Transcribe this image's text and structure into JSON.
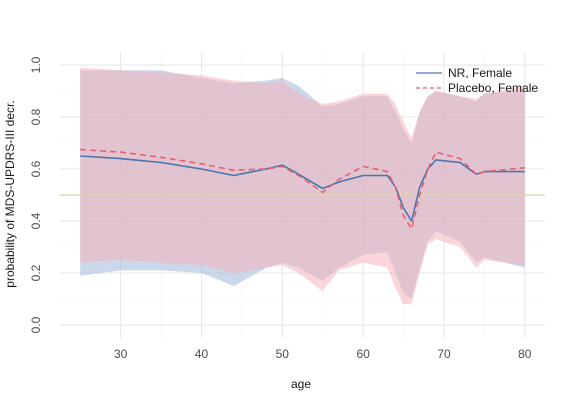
{
  "chart_data": {
    "type": "line",
    "xlabel": "age",
    "ylabel": "probability of MDS-UPDRS-III decr.",
    "xlim": [
      22.5,
      82.5
    ],
    "ylim": [
      -0.05,
      1.05
    ],
    "xticks": [
      30,
      40,
      50,
      60,
      70,
      80
    ],
    "yticks": [
      0.0,
      0.2,
      0.4,
      0.6,
      0.8,
      1.0
    ],
    "xtick_labels": [
      "30",
      "40",
      "50",
      "60",
      "70",
      "80"
    ],
    "ytick_labels": [
      "0.0",
      "0.2",
      "0.4",
      "0.6",
      "0.8",
      "1.0"
    ],
    "grid": true,
    "legend_position": "top-right",
    "reference_line": {
      "y": 0.5,
      "color": "#d8d6a0"
    },
    "x": [
      25,
      30,
      35,
      40,
      44,
      48,
      50,
      52,
      55,
      57,
      60,
      63,
      64,
      65,
      66,
      67,
      68,
      69,
      72,
      74,
      75,
      80
    ],
    "series": [
      {
        "name": "NR, Female",
        "color": "#4a74b0",
        "band_color": "#a8bcdc",
        "line_style": "solid",
        "values": [
          0.65,
          0.64,
          0.625,
          0.6,
          0.575,
          0.6,
          0.615,
          0.58,
          0.525,
          0.55,
          0.575,
          0.575,
          0.53,
          0.45,
          0.4,
          0.53,
          0.6,
          0.635,
          0.625,
          0.58,
          0.59,
          0.59
        ],
        "lower": [
          0.19,
          0.21,
          0.21,
          0.2,
          0.15,
          0.22,
          0.24,
          0.22,
          0.17,
          0.22,
          0.27,
          0.28,
          0.2,
          0.12,
          0.1,
          0.22,
          0.32,
          0.36,
          0.32,
          0.24,
          0.26,
          0.22
        ],
        "upper": [
          0.98,
          0.98,
          0.98,
          0.95,
          0.93,
          0.94,
          0.95,
          0.92,
          0.84,
          0.85,
          0.88,
          0.88,
          0.82,
          0.75,
          0.7,
          0.82,
          0.88,
          0.9,
          0.88,
          0.86,
          0.89,
          0.9
        ]
      },
      {
        "name": "Placebo, Female",
        "color": "#e8606f",
        "band_color": "#f5b4bc",
        "line_style": "dashed",
        "values": [
          0.675,
          0.665,
          0.645,
          0.62,
          0.595,
          0.6,
          0.61,
          0.575,
          0.51,
          0.56,
          0.61,
          0.59,
          0.53,
          0.42,
          0.37,
          0.5,
          0.6,
          0.665,
          0.64,
          0.58,
          0.59,
          0.605
        ],
        "lower": [
          0.24,
          0.25,
          0.24,
          0.23,
          0.2,
          0.22,
          0.23,
          0.2,
          0.13,
          0.21,
          0.24,
          0.22,
          0.14,
          0.08,
          0.08,
          0.2,
          0.31,
          0.33,
          0.3,
          0.22,
          0.25,
          0.23
        ],
        "upper": [
          0.99,
          0.98,
          0.97,
          0.96,
          0.94,
          0.93,
          0.94,
          0.89,
          0.85,
          0.86,
          0.89,
          0.89,
          0.85,
          0.78,
          0.72,
          0.82,
          0.88,
          0.9,
          0.88,
          0.87,
          0.89,
          0.92
        ]
      }
    ]
  }
}
